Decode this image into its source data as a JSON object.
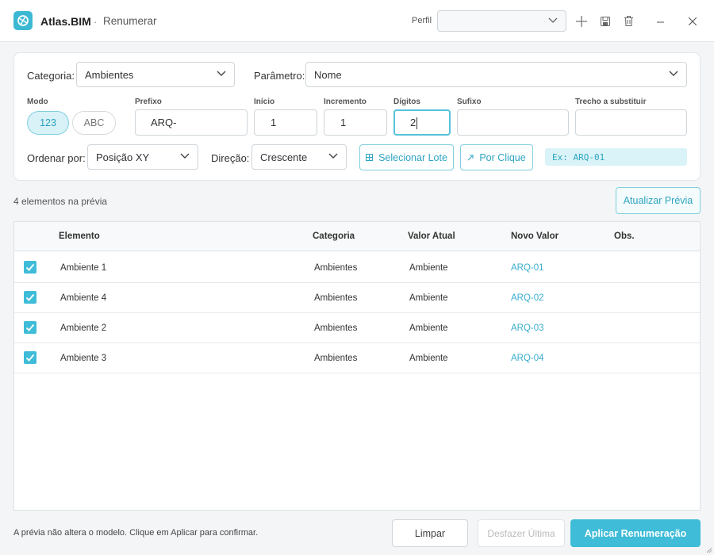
{
  "header": {
    "app": "Atlas.BIM",
    "separator": "·",
    "page": "Renumerar",
    "profile_label": "Perfil"
  },
  "filters": {
    "category_label": "Categoria:",
    "category": "Ambientes",
    "parameter_label": "Parâmetro:",
    "parameter": "Nome"
  },
  "fields": {
    "mode_label": "Modo",
    "modes": [
      "123",
      "ABC"
    ],
    "prefix_label": "Prefixo",
    "prefix": "ARQ-",
    "start_label": "Início",
    "start": 1,
    "increment_label": "Incremento",
    "increment": 1,
    "digits_label": "Dígitos",
    "digits": 2,
    "suffix_label": "Sufixo",
    "replace_label": "Trecho a substituir"
  },
  "order": {
    "order_label": "Ordenar por:",
    "order": "Posição XY",
    "direction_label": "Direção:",
    "direction": "Crescente",
    "select_batch": "Selecionar Lote",
    "by_click": "Por Clique",
    "example": "Ex: ARQ-01"
  },
  "preview": {
    "count_text": "4 elementos na prévia",
    "refresh": "Atualizar Prévia"
  },
  "table": {
    "columns": [
      "Elemento",
      "Categoria",
      "Valor Atual",
      "Novo Valor",
      "Obs."
    ],
    "rows": [
      [
        "Ambiente 1",
        "Ambientes",
        "Ambiente",
        "ARQ-01"
      ],
      [
        "Ambiente 4",
        "Ambientes",
        "Ambiente",
        "ARQ-02"
      ],
      [
        "Ambiente 2",
        "Ambientes",
        "Ambiente",
        "ARQ-03"
      ],
      [
        "Ambiente 3",
        "Ambientes",
        "Ambiente",
        "ARQ-04"
      ]
    ]
  },
  "footer": {
    "note": "A prévia não altera o modelo. Clique em Aplicar para confirmar.",
    "clear": "Limpar",
    "undo": "Desfazer Última",
    "apply": "Aplicar Renumeração"
  }
}
